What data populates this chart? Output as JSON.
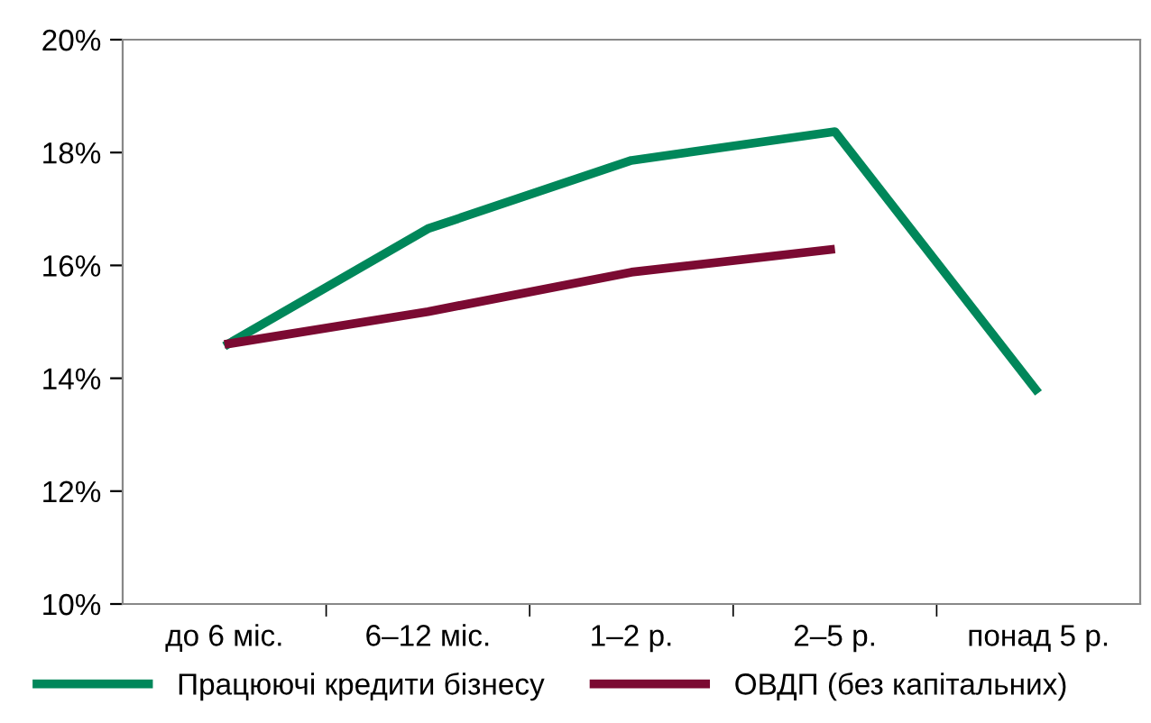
{
  "chart_data": {
    "type": "line",
    "categories": [
      "до 6 міс.",
      "6–12 міс.",
      "1–2 р.",
      "2–5 р.",
      "понад 5 р."
    ],
    "series": [
      {
        "name": "Працюючі кредити бізнесу",
        "color": "#00875a",
        "values": [
          14.57,
          16.65,
          17.86,
          18.37,
          13.74
        ]
      },
      {
        "name": "ОВДП (без капітальних)",
        "color": "#7b0a32",
        "values": [
          14.6,
          15.18,
          15.88,
          16.29,
          null
        ]
      }
    ],
    "ylim": [
      10,
      20
    ],
    "yticks": [
      {
        "value": 10,
        "label": "10%"
      },
      {
        "value": 12,
        "label": "12%"
      },
      {
        "value": 14,
        "label": "14%"
      },
      {
        "value": 16,
        "label": "16%"
      },
      {
        "value": 18,
        "label": "18%"
      },
      {
        "value": 20,
        "label": "20%"
      }
    ],
    "grid": false,
    "legend": "bottom",
    "marker": "none",
    "line_style": "solid"
  }
}
